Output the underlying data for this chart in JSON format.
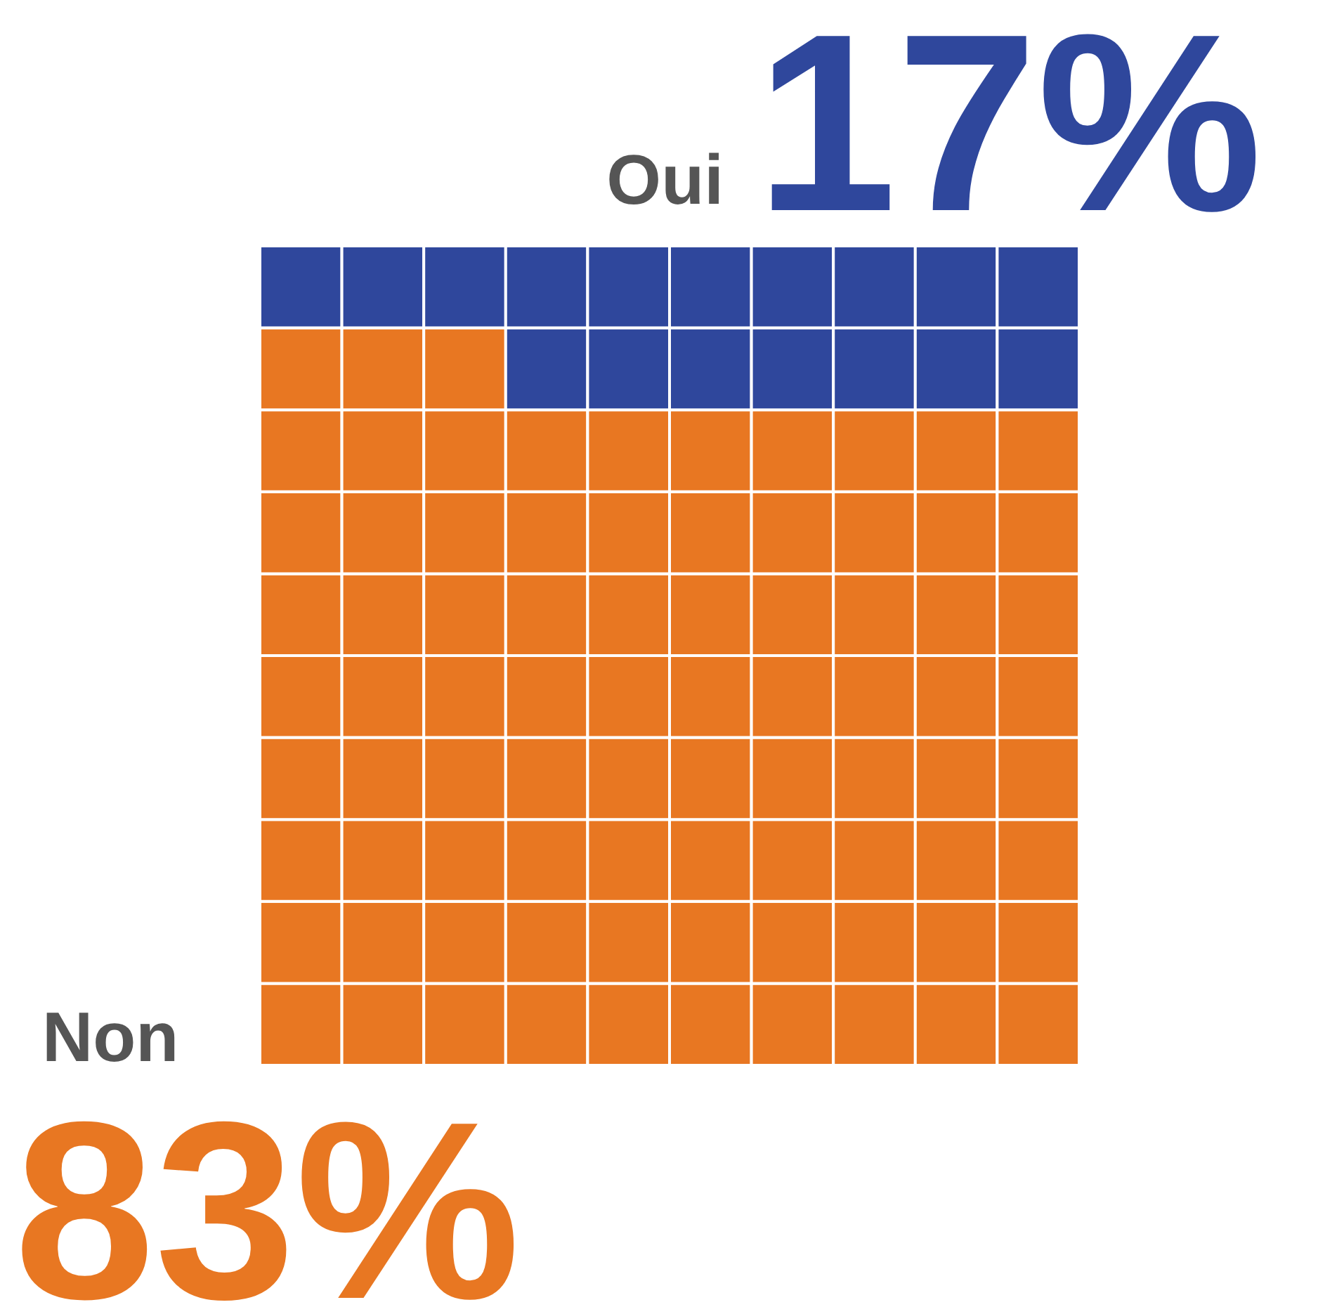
{
  "chart_data": {
    "type": "other",
    "categories": [
      "Oui",
      "Non"
    ],
    "values": [
      17,
      83
    ],
    "colors": [
      "#2f479c",
      "#e87722"
    ],
    "value_labels": [
      "17%",
      "83%"
    ]
  }
}
